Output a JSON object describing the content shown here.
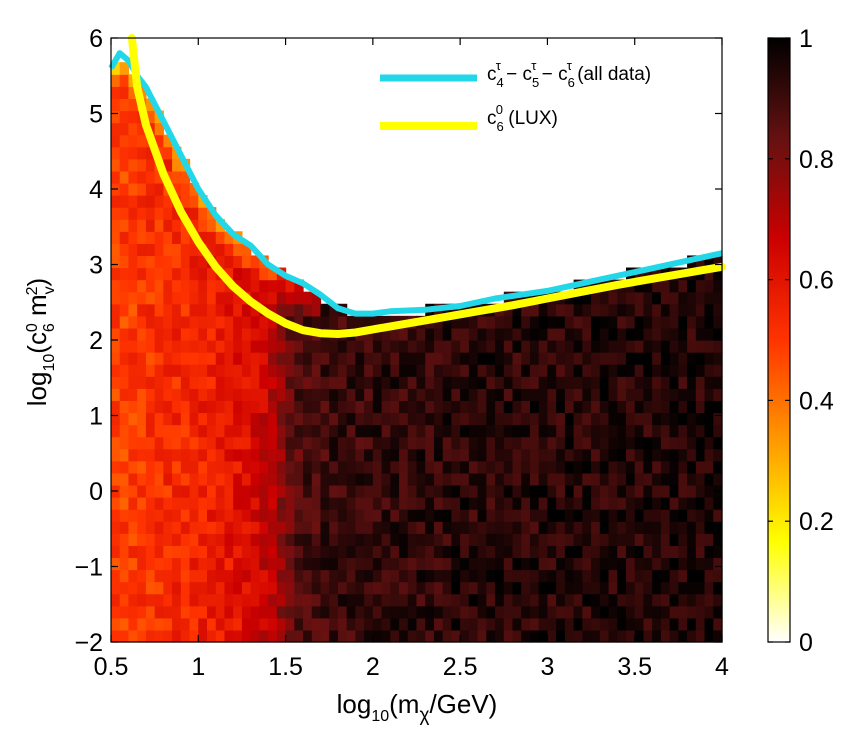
{
  "chart_data": {
    "type": "heatmap",
    "title": "",
    "xlabel": {
      "base": "log",
      "sub": "10",
      "text": "(m",
      "sub2": "χ",
      "tail": "/GeV)"
    },
    "ylabel": {
      "base": "log",
      "sub": "10",
      "text": "(c",
      "sub2": "6",
      "sup2": "0",
      "text2": " m",
      "sub3": "v",
      "sup3": "2",
      "tail": ")"
    },
    "xlim": [
      0.5,
      4
    ],
    "ylim": [
      -2,
      6
    ],
    "x_ticks": [
      {
        "value": 0.5,
        "label": "0.5"
      },
      {
        "value": 1,
        "label": "1"
      },
      {
        "value": 1.5,
        "label": "1.5"
      },
      {
        "value": 2,
        "label": "2"
      },
      {
        "value": 2.5,
        "label": "2.5"
      },
      {
        "value": 3,
        "label": "3"
      },
      {
        "value": 3.5,
        "label": "3.5"
      },
      {
        "value": 4,
        "label": "4"
      }
    ],
    "y_ticks": [
      {
        "value": -2,
        "label": "−2"
      },
      {
        "value": -1,
        "label": "−1"
      },
      {
        "value": 0,
        "label": "0"
      },
      {
        "value": 1,
        "label": "1"
      },
      {
        "value": 2,
        "label": "2"
      },
      {
        "value": 3,
        "label": "3"
      },
      {
        "value": 4,
        "label": "4"
      },
      {
        "value": 5,
        "label": "5"
      },
      {
        "value": 6,
        "label": "6"
      }
    ],
    "colorbar": {
      "range": [
        0,
        1
      ],
      "colormap": [
        "#ffffff",
        "#ffff00",
        "#ff9900",
        "#ff3300",
        "#cc0000",
        "#661111",
        "#000000"
      ],
      "ticks": [
        {
          "value": 0,
          "label": "0"
        },
        {
          "value": 0.2,
          "label": "0.2"
        },
        {
          "value": 0.4,
          "label": "0.4"
        },
        {
          "value": 0.6,
          "label": "0.6"
        },
        {
          "value": 0.8,
          "label": "0.8"
        },
        {
          "value": 1,
          "label": "1"
        }
      ]
    },
    "heatmap": {
      "x_bins": 70,
      "y_bins": 50,
      "value_profile": {
        "x": [
          0.5,
          1.0,
          1.3,
          1.45,
          1.5,
          1.6,
          1.8,
          2.5,
          4.0
        ],
        "v": [
          0.48,
          0.55,
          0.62,
          0.72,
          0.83,
          0.88,
          0.91,
          0.93,
          0.95
        ]
      },
      "note": "cell values ~ profile(x) with noise; cells above the all-data boundary are empty"
    },
    "series": [
      {
        "name": "all data",
        "legend": {
          "c": "c",
          "a": "4",
          "b": "5",
          "d": "6",
          "sup": "τ",
          "tail": " (all data)"
        },
        "color": "#22d8e8",
        "x": [
          0.5,
          0.55,
          0.6,
          0.65,
          0.7,
          0.8,
          0.9,
          1.0,
          1.1,
          1.2,
          1.3,
          1.4,
          1.5,
          1.6,
          1.7,
          1.8,
          1.9,
          2.0,
          2.1,
          2.3,
          2.5,
          2.7,
          3.0,
          3.3,
          3.6,
          4.0
        ],
        "y": [
          5.6,
          5.8,
          5.7,
          5.5,
          5.35,
          4.9,
          4.45,
          4.0,
          3.65,
          3.4,
          3.25,
          3.0,
          2.85,
          2.75,
          2.6,
          2.42,
          2.35,
          2.35,
          2.38,
          2.4,
          2.45,
          2.55,
          2.65,
          2.8,
          2.95,
          3.15
        ]
      },
      {
        "name": "LUX",
        "legend": {
          "c": "c",
          "sub": "6",
          "sup": "0",
          "tail": " (LUX)"
        },
        "color": "#ffff00",
        "x": [
          0.62,
          0.65,
          0.7,
          0.8,
          0.9,
          1.0,
          1.1,
          1.2,
          1.3,
          1.4,
          1.5,
          1.6,
          1.7,
          1.8,
          1.9,
          2.0,
          2.2,
          2.4,
          2.6,
          2.8,
          3.0,
          3.2,
          3.4,
          3.6,
          3.8,
          4.0
        ],
        "y": [
          6.0,
          5.35,
          4.85,
          4.2,
          3.7,
          3.3,
          2.97,
          2.71,
          2.51,
          2.35,
          2.22,
          2.13,
          2.09,
          2.08,
          2.1,
          2.14,
          2.22,
          2.3,
          2.38,
          2.46,
          2.55,
          2.64,
          2.73,
          2.81,
          2.89,
          2.97
        ]
      }
    ]
  }
}
